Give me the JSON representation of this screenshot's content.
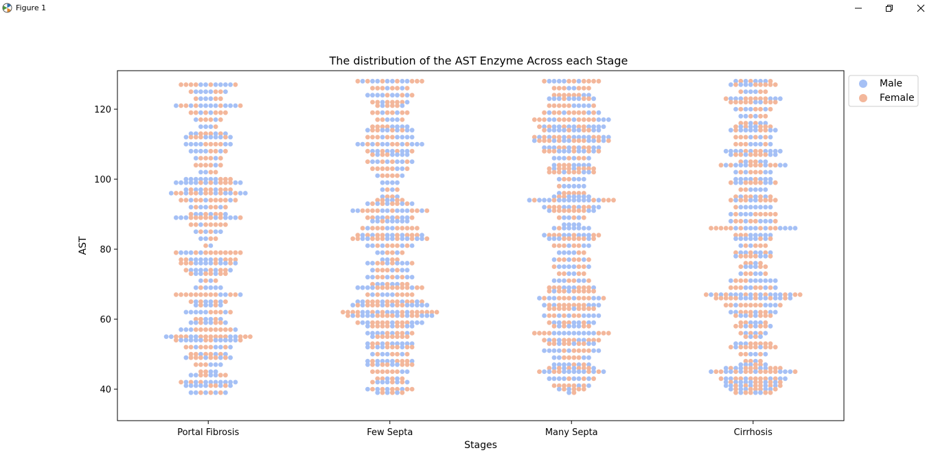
{
  "window": {
    "title": "Figure 1",
    "icon": "matplotlib-figure-icon",
    "controls": [
      "minimize-icon",
      "restore-icon",
      "close-icon"
    ]
  },
  "colors": {
    "male": "#a5c0f5",
    "female": "#f3b79b",
    "axes": "#000000",
    "background": "#ffffff"
  },
  "chart_data": {
    "type": "scatter",
    "subtype": "swarm",
    "title": "The distribution of the AST Enzyme Across each Stage",
    "xlabel": "Stages",
    "ylabel": "AST",
    "categories": [
      "Portal Fibrosis",
      "Few Septa",
      "Many Septa",
      "Cirrhosis"
    ],
    "ylim": [
      31,
      131
    ],
    "yticks": [
      40,
      60,
      80,
      100,
      120
    ],
    "grid": false,
    "legend": {
      "placement": "upper-right-outside",
      "entries": [
        "Male",
        "Female"
      ]
    },
    "hue_order": [
      "Male",
      "Female"
    ],
    "series": [
      {
        "name": "Male",
        "color": "#a5c0f5",
        "note": "AST values 39 to 128 per stage, interleaved with Female points in a beeswarm"
      },
      {
        "name": "Female",
        "color": "#f3b79b",
        "note": "AST values 39 to 128 per stage, interleaved with Male points in a beeswarm"
      }
    ],
    "distribution": [
      {
        "stage": "Portal Fibrosis",
        "min": 39,
        "max": 127,
        "rows": [
          [
            127,
            12
          ],
          [
            125,
            8
          ],
          [
            123,
            6
          ],
          [
            121,
            14
          ],
          [
            119,
            8
          ],
          [
            117,
            6
          ],
          [
            115,
            4
          ],
          [
            113,
            8
          ],
          [
            112,
            10
          ],
          [
            110,
            10
          ],
          [
            108,
            8
          ],
          [
            106,
            6
          ],
          [
            104,
            6
          ],
          [
            102,
            4
          ],
          [
            100,
            10
          ],
          [
            99,
            14
          ],
          [
            97,
            10
          ],
          [
            96,
            16
          ],
          [
            94,
            12
          ],
          [
            92,
            8
          ],
          [
            90,
            8
          ],
          [
            89,
            14
          ],
          [
            87,
            8
          ],
          [
            85,
            6
          ],
          [
            83,
            4
          ],
          [
            81,
            2
          ],
          [
            79,
            14
          ],
          [
            77,
            12
          ],
          [
            76,
            12
          ],
          [
            74,
            10
          ],
          [
            73,
            8
          ],
          [
            71,
            4
          ],
          [
            69,
            6
          ],
          [
            67,
            14
          ],
          [
            65,
            8
          ],
          [
            64,
            6
          ],
          [
            62,
            10
          ],
          [
            60,
            6
          ],
          [
            59,
            8
          ],
          [
            57,
            12
          ],
          [
            55,
            18
          ],
          [
            54,
            14
          ],
          [
            52,
            10
          ],
          [
            50,
            8
          ],
          [
            49,
            10
          ],
          [
            47,
            6
          ],
          [
            45,
            4
          ],
          [
            44,
            8
          ],
          [
            42,
            12
          ],
          [
            41,
            10
          ],
          [
            39,
            8
          ]
        ]
      },
      {
        "stage": "Few Septa",
        "min": 39,
        "max": 128,
        "rows": [
          [
            128,
            14
          ],
          [
            126,
            8
          ],
          [
            124,
            10
          ],
          [
            122,
            8
          ],
          [
            121,
            6
          ],
          [
            119,
            8
          ],
          [
            117,
            6
          ],
          [
            115,
            8
          ],
          [
            114,
            10
          ],
          [
            112,
            10
          ],
          [
            110,
            14
          ],
          [
            108,
            10
          ],
          [
            107,
            8
          ],
          [
            105,
            10
          ],
          [
            103,
            8
          ],
          [
            101,
            6
          ],
          [
            99,
            4
          ],
          [
            97,
            4
          ],
          [
            95,
            4
          ],
          [
            94,
            6
          ],
          [
            93,
            10
          ],
          [
            91,
            16
          ],
          [
            89,
            10
          ],
          [
            88,
            8
          ],
          [
            86,
            12
          ],
          [
            84,
            14
          ],
          [
            83,
            16
          ],
          [
            81,
            10
          ],
          [
            79,
            6
          ],
          [
            77,
            4
          ],
          [
            76,
            10
          ],
          [
            74,
            8
          ],
          [
            72,
            10
          ],
          [
            70,
            8
          ],
          [
            69,
            14
          ],
          [
            67,
            10
          ],
          [
            65,
            14
          ],
          [
            64,
            16
          ],
          [
            62,
            20
          ],
          [
            61,
            18
          ],
          [
            59,
            14
          ],
          [
            58,
            10
          ],
          [
            56,
            10
          ],
          [
            55,
            8
          ],
          [
            53,
            10
          ],
          [
            52,
            10
          ],
          [
            50,
            8
          ],
          [
            48,
            10
          ],
          [
            47,
            10
          ],
          [
            45,
            8
          ],
          [
            43,
            6
          ],
          [
            42,
            8
          ],
          [
            40,
            10
          ],
          [
            39,
            6
          ]
        ]
      },
      {
        "stage": "Many Septa",
        "min": 39,
        "max": 128,
        "rows": [
          [
            128,
            12
          ],
          [
            126,
            8
          ],
          [
            124,
            8
          ],
          [
            123,
            10
          ],
          [
            121,
            10
          ],
          [
            119,
            12
          ],
          [
            117,
            16
          ],
          [
            115,
            14
          ],
          [
            114,
            12
          ],
          [
            112,
            16
          ],
          [
            111,
            16
          ],
          [
            109,
            12
          ],
          [
            108,
            12
          ],
          [
            106,
            8
          ],
          [
            104,
            8
          ],
          [
            103,
            10
          ],
          [
            102,
            10
          ],
          [
            100,
            6
          ],
          [
            98,
            6
          ],
          [
            96,
            6
          ],
          [
            95,
            8
          ],
          [
            94,
            18
          ],
          [
            92,
            12
          ],
          [
            91,
            10
          ],
          [
            89,
            6
          ],
          [
            87,
            4
          ],
          [
            86,
            8
          ],
          [
            84,
            12
          ],
          [
            83,
            10
          ],
          [
            81,
            8
          ],
          [
            79,
            6
          ],
          [
            77,
            8
          ],
          [
            75,
            8
          ],
          [
            73,
            6
          ],
          [
            71,
            8
          ],
          [
            69,
            10
          ],
          [
            68,
            10
          ],
          [
            66,
            14
          ],
          [
            64,
            12
          ],
          [
            63,
            10
          ],
          [
            61,
            12
          ],
          [
            59,
            10
          ],
          [
            58,
            8
          ],
          [
            56,
            16
          ],
          [
            54,
            12
          ],
          [
            53,
            10
          ],
          [
            51,
            12
          ],
          [
            49,
            8
          ],
          [
            47,
            8
          ],
          [
            46,
            10
          ],
          [
            45,
            14
          ],
          [
            43,
            10
          ],
          [
            41,
            8
          ],
          [
            40,
            6
          ],
          [
            39,
            2
          ]
        ]
      },
      {
        "stage": "Cirrhosis",
        "min": 39,
        "max": 128,
        "rows": [
          [
            128,
            8
          ],
          [
            127,
            10
          ],
          [
            125,
            6
          ],
          [
            123,
            12
          ],
          [
            122,
            10
          ],
          [
            120,
            8
          ],
          [
            118,
            6
          ],
          [
            116,
            6
          ],
          [
            115,
            8
          ],
          [
            114,
            10
          ],
          [
            112,
            8
          ],
          [
            110,
            8
          ],
          [
            108,
            12
          ],
          [
            107,
            10
          ],
          [
            105,
            6
          ],
          [
            104,
            14
          ],
          [
            102,
            8
          ],
          [
            100,
            8
          ],
          [
            99,
            10
          ],
          [
            97,
            6
          ],
          [
            95,
            8
          ],
          [
            94,
            10
          ],
          [
            92,
            8
          ],
          [
            90,
            10
          ],
          [
            88,
            10
          ],
          [
            86,
            18
          ],
          [
            84,
            8
          ],
          [
            83,
            8
          ],
          [
            81,
            6
          ],
          [
            79,
            8
          ],
          [
            78,
            8
          ],
          [
            76,
            4
          ],
          [
            75,
            6
          ],
          [
            73,
            6
          ],
          [
            71,
            10
          ],
          [
            69,
            10
          ],
          [
            67,
            20
          ],
          [
            66,
            16
          ],
          [
            64,
            12
          ],
          [
            62,
            10
          ],
          [
            61,
            8
          ],
          [
            59,
            6
          ],
          [
            58,
            8
          ],
          [
            56,
            6
          ],
          [
            55,
            4
          ],
          [
            53,
            8
          ],
          [
            52,
            10
          ],
          [
            50,
            6
          ],
          [
            48,
            4
          ],
          [
            47,
            6
          ],
          [
            46,
            12
          ],
          [
            45,
            18
          ],
          [
            43,
            14
          ],
          [
            42,
            12
          ],
          [
            41,
            12
          ],
          [
            40,
            10
          ],
          [
            39,
            8
          ]
        ]
      }
    ]
  }
}
